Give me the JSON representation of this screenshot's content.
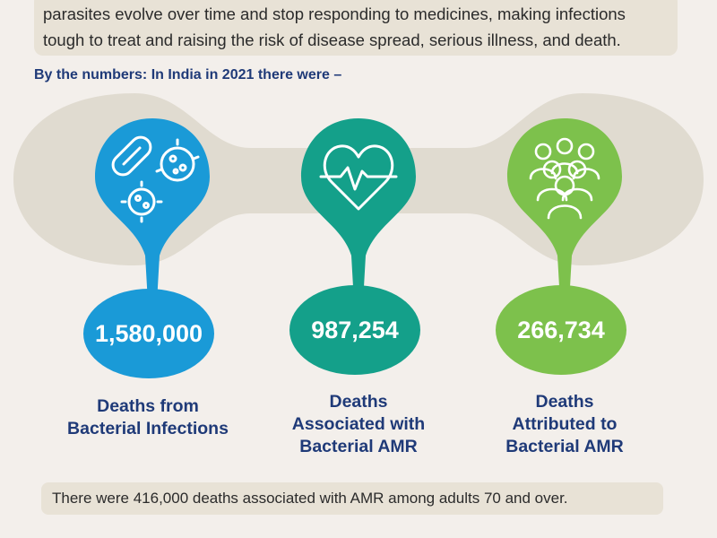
{
  "intro": {
    "line1": "parasites evolve over time and stop responding to medicines, making infections",
    "line2": "tough to treat and raising the risk of disease spread, serious illness, and death."
  },
  "heading": "By the numbers: In India in 2021 there were –",
  "colors": {
    "blue": "#1a9ad7",
    "teal": "#14a08a",
    "green": "#7dc14c",
    "navy": "#1f3a78",
    "band": "#e0dbd0"
  },
  "stats": [
    {
      "value": "1,580,000",
      "label_line1": "Deaths from",
      "label_line2": "Bacterial Infections",
      "label_line3": "",
      "icon": "bacteria-icon"
    },
    {
      "value": "987,254",
      "label_line1": "Deaths",
      "label_line2": "Associated with",
      "label_line3": "Bacterial AMR",
      "icon": "heart-pulse-icon"
    },
    {
      "value": "266,734",
      "label_line1": "Deaths",
      "label_line2": "Attributed to",
      "label_line3": "Bacterial AMR",
      "icon": "people-group-icon"
    }
  ],
  "footer": "There were 416,000 deaths associated with AMR among adults 70 and over."
}
